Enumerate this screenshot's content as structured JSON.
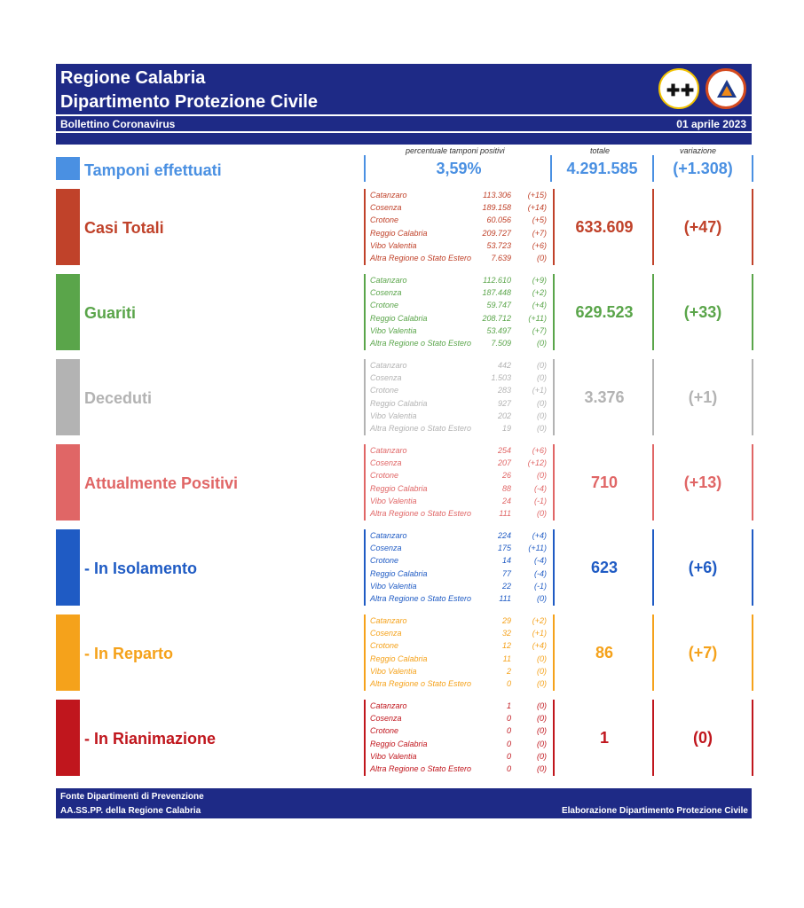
{
  "header": {
    "title1": "Regione Calabria",
    "title2": "Dipartimento Protezione Civile",
    "bulletin": "Bollettino Coronavirus",
    "date": "01 aprile 2023"
  },
  "columns": {
    "pct_label": "percentuale tamponi positivi",
    "total_label": "totale",
    "var_label": "variazione"
  },
  "tamponi": {
    "label": "Tamponi effettuati",
    "pct": "3,59%",
    "total": "4.291.585",
    "var": "(+1.308)",
    "color": "#4a90e2"
  },
  "sections": [
    {
      "key": "casi",
      "label": "Casi Totali",
      "color": "#c0422a",
      "total": "633.609",
      "var": "(+47)",
      "rows": [
        {
          "name": "Catanzaro",
          "value": "113.306",
          "delta": "(+15)"
        },
        {
          "name": "Cosenza",
          "value": "189.158",
          "delta": "(+14)"
        },
        {
          "name": "Crotone",
          "value": "60.056",
          "delta": "(+5)"
        },
        {
          "name": "Reggio Calabria",
          "value": "209.727",
          "delta": "(+7)"
        },
        {
          "name": "Vibo Valentia",
          "value": "53.723",
          "delta": "(+6)"
        },
        {
          "name": "Altra Regione o Stato Estero",
          "value": "7.639",
          "delta": "(0)"
        }
      ]
    },
    {
      "key": "guariti",
      "label": "Guariti",
      "color": "#5aa54a",
      "total": "629.523",
      "var": "(+33)",
      "rows": [
        {
          "name": "Catanzaro",
          "value": "112.610",
          "delta": "(+9)"
        },
        {
          "name": "Cosenza",
          "value": "187.448",
          "delta": "(+2)"
        },
        {
          "name": "Crotone",
          "value": "59.747",
          "delta": "(+4)"
        },
        {
          "name": "Reggio Calabria",
          "value": "208.712",
          "delta": "(+11)"
        },
        {
          "name": "Vibo Valentia",
          "value": "53.497",
          "delta": "(+7)"
        },
        {
          "name": "Altra Regione o Stato Estero",
          "value": "7.509",
          "delta": "(0)"
        }
      ]
    },
    {
      "key": "deceduti",
      "label": "Deceduti",
      "color": "#b3b3b3",
      "total": "3.376",
      "var": "(+1)",
      "rows": [
        {
          "name": "Catanzaro",
          "value": "442",
          "delta": "(0)"
        },
        {
          "name": "Cosenza",
          "value": "1.503",
          "delta": "(0)"
        },
        {
          "name": "Crotone",
          "value": "283",
          "delta": "(+1)"
        },
        {
          "name": "Reggio Calabria",
          "value": "927",
          "delta": "(0)"
        },
        {
          "name": "Vibo Valentia",
          "value": "202",
          "delta": "(0)"
        },
        {
          "name": "Altra Regione o Stato Estero",
          "value": "19",
          "delta": "(0)"
        }
      ]
    },
    {
      "key": "positivi",
      "label": "Attualmente Positivi",
      "color": "#e06666",
      "total": "710",
      "var": "(+13)",
      "rows": [
        {
          "name": "Catanzaro",
          "value": "254",
          "delta": "(+6)"
        },
        {
          "name": "Cosenza",
          "value": "207",
          "delta": "(+12)"
        },
        {
          "name": "Crotone",
          "value": "26",
          "delta": "(0)"
        },
        {
          "name": "Reggio Calabria",
          "value": "88",
          "delta": "(-4)"
        },
        {
          "name": "Vibo Valentia",
          "value": "24",
          "delta": "(-1)"
        },
        {
          "name": "Altra Regione o Stato Estero",
          "value": "111",
          "delta": "(0)"
        }
      ]
    },
    {
      "key": "isolamento",
      "label": " - In Isolamento",
      "color": "#1f5bc4",
      "total": "623",
      "var": "(+6)",
      "rows": [
        {
          "name": "Catanzaro",
          "value": "224",
          "delta": "(+4)"
        },
        {
          "name": "Cosenza",
          "value": "175",
          "delta": "(+11)"
        },
        {
          "name": "Crotone",
          "value": "14",
          "delta": "(-4)"
        },
        {
          "name": "Reggio Calabria",
          "value": "77",
          "delta": "(-4)"
        },
        {
          "name": "Vibo Valentia",
          "value": "22",
          "delta": "(-1)"
        },
        {
          "name": "Altra Regione o Stato Estero",
          "value": "111",
          "delta": "(0)"
        }
      ]
    },
    {
      "key": "reparto",
      "label": " - In Reparto",
      "color": "#f5a21b",
      "total": "86",
      "var": "(+7)",
      "rows": [
        {
          "name": "Catanzaro",
          "value": "29",
          "delta": "(+2)"
        },
        {
          "name": "Cosenza",
          "value": "32",
          "delta": "(+1)"
        },
        {
          "name": "Crotone",
          "value": "12",
          "delta": "(+4)"
        },
        {
          "name": "Reggio Calabria",
          "value": "11",
          "delta": "(0)"
        },
        {
          "name": "Vibo Valentia",
          "value": "2",
          "delta": "(0)"
        },
        {
          "name": "Altra Regione o Stato Estero",
          "value": "0",
          "delta": "(0)"
        }
      ]
    },
    {
      "key": "rianimazione",
      "label": " - In Rianimazione",
      "color": "#c0161d",
      "total": "1",
      "var": "(0)",
      "rows": [
        {
          "name": "Catanzaro",
          "value": "1",
          "delta": "(0)"
        },
        {
          "name": "Cosenza",
          "value": "0",
          "delta": "(0)"
        },
        {
          "name": "Crotone",
          "value": "0",
          "delta": "(0)"
        },
        {
          "name": "Reggio Calabria",
          "value": "0",
          "delta": "(0)"
        },
        {
          "name": "Vibo Valentia",
          "value": "0",
          "delta": "(0)"
        },
        {
          "name": "Altra Regione o Stato Estero",
          "value": "0",
          "delta": "(0)"
        }
      ]
    }
  ],
  "footer": {
    "source1": "Fonte Dipartimenti di Prevenzione",
    "source2": "AA.SS.PP.  della Regione Calabria",
    "elaboration": "Elaborazione Dipartimento Protezione Civile"
  }
}
